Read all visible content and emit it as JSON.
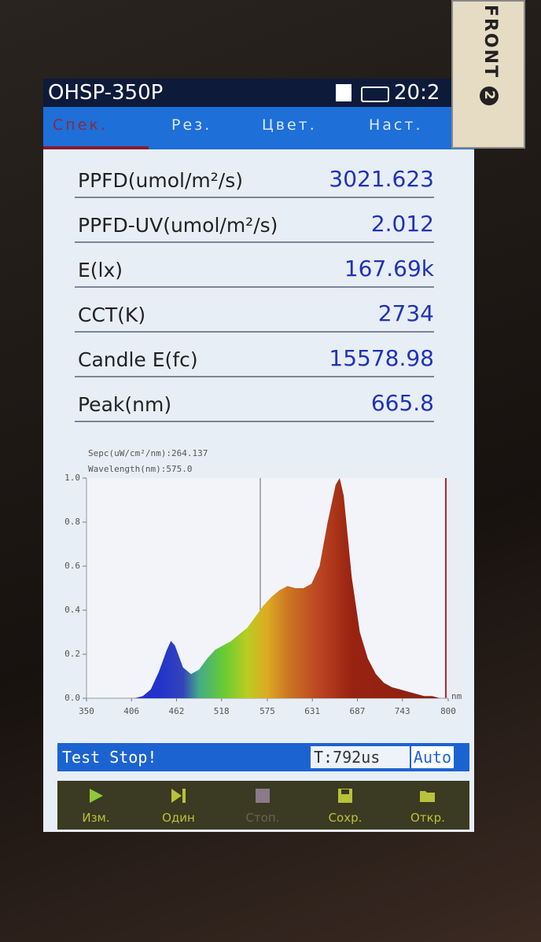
{
  "header": {
    "model": "OHSP-350P",
    "time": "20:2"
  },
  "tabs": [
    "Спек.",
    "Рез.",
    "Цвет.",
    "Наст."
  ],
  "measurements": [
    {
      "label": "PPFD(umol/m²/s)",
      "value": "3021.623"
    },
    {
      "label": "PPFD-UV(umol/m²/s)",
      "value": "2.012"
    },
    {
      "label": "E(lx)",
      "value": "167.69k"
    },
    {
      "label": "CCT(K)",
      "value": "2734"
    },
    {
      "label": "Candle E(fc)",
      "value": "15578.98"
    },
    {
      "label": "Peak(nm)",
      "value": "665.8"
    }
  ],
  "chart_data": {
    "type": "area",
    "annotations": [
      "Sepc(uW/cm²/nm):264.137",
      "Wavelength(nm):575.0"
    ],
    "x_label": "nm",
    "x": [
      350,
      360,
      370,
      380,
      390,
      400,
      410,
      420,
      430,
      440,
      450,
      455,
      460,
      470,
      480,
      490,
      500,
      510,
      520,
      530,
      540,
      550,
      560,
      570,
      580,
      590,
      600,
      610,
      620,
      630,
      640,
      650,
      660,
      665,
      670,
      680,
      690,
      700,
      710,
      720,
      730,
      740,
      750,
      760,
      770,
      780,
      790,
      800
    ],
    "values": [
      0,
      0,
      0,
      0,
      0,
      0,
      0,
      0.01,
      0.04,
      0.12,
      0.22,
      0.26,
      0.24,
      0.14,
      0.11,
      0.13,
      0.18,
      0.22,
      0.24,
      0.26,
      0.29,
      0.32,
      0.37,
      0.42,
      0.46,
      0.49,
      0.51,
      0.5,
      0.5,
      0.52,
      0.6,
      0.8,
      0.97,
      1.0,
      0.92,
      0.55,
      0.3,
      0.18,
      0.11,
      0.07,
      0.05,
      0.04,
      0.03,
      0.02,
      0.01,
      0.01,
      0,
      0
    ],
    "xlim": [
      350,
      800
    ],
    "ylim": [
      0,
      1
    ],
    "xticks": [
      350,
      406,
      462,
      518,
      575,
      631,
      687,
      743,
      800
    ],
    "yticks": [
      {
        "value": 0,
        "label": "0.0"
      },
      0.2,
      0.4,
      0.6,
      0.8,
      {
        "value": 1,
        "label": "1.0"
      }
    ]
  },
  "status": {
    "message": "Test Stop!",
    "exposure": "T:792us",
    "mode": "Auto"
  },
  "toolbar": [
    "Изм.",
    "Один",
    "Стоп.",
    "Сохр.",
    "Откр."
  ],
  "sticker": {
    "label": "FRONT",
    "number": "2"
  }
}
